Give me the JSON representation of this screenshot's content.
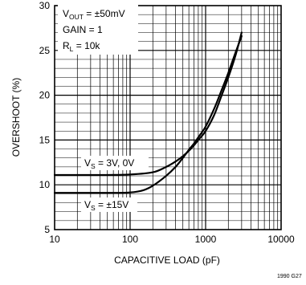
{
  "chart_data": {
    "type": "line",
    "title": "",
    "xlabel": "CAPACITIVE LOAD (pF)",
    "ylabel": "OVERSHOOT (%)",
    "x_scale": "log",
    "xlim": [
      10,
      10000
    ],
    "ylim": [
      5,
      30
    ],
    "x_ticks": [
      10,
      100,
      1000,
      10000
    ],
    "x_tick_labels": [
      "10",
      "100",
      "1000",
      "10000"
    ],
    "y_ticks": [
      5,
      10,
      15,
      20,
      25,
      30
    ],
    "y_tick_labels": [
      "5",
      "10",
      "15",
      "20",
      "25",
      "30"
    ],
    "grid": true,
    "conditions": {
      "vout": {
        "main": "V",
        "sub": "OUT",
        "rest": " = ±50mV"
      },
      "gain": "GAIN = 1",
      "rl": {
        "main": "R",
        "sub": "L",
        "rest": " = 10k"
      }
    },
    "series": [
      {
        "label": {
          "main": "V",
          "sub": "S",
          "rest": " = 3V, 0V"
        },
        "x": [
          10,
          50,
          100,
          200,
          300,
          400,
          500,
          600,
          700,
          800,
          1000,
          1300,
          1600,
          2000,
          2500,
          3000
        ],
        "y": [
          11.1,
          11.1,
          11.15,
          11.4,
          12.0,
          12.6,
          13.2,
          13.8,
          14.4,
          15.0,
          16.0,
          17.8,
          19.8,
          22.0,
          24.5,
          27.0
        ]
      },
      {
        "label": {
          "main": "V",
          "sub": "S",
          "rest": " = ±15V"
        },
        "x": [
          10,
          50,
          100,
          150,
          200,
          300,
          400,
          500,
          600,
          700,
          800,
          1000,
          1300,
          1600,
          2000,
          2500,
          3000
        ],
        "y": [
          9.1,
          9.1,
          9.15,
          9.4,
          9.9,
          11.0,
          12.0,
          13.0,
          13.9,
          14.6,
          15.3,
          16.5,
          18.5,
          20.4,
          22.5,
          24.8,
          26.6
        ]
      }
    ]
  },
  "figure_code": "1990 G27"
}
